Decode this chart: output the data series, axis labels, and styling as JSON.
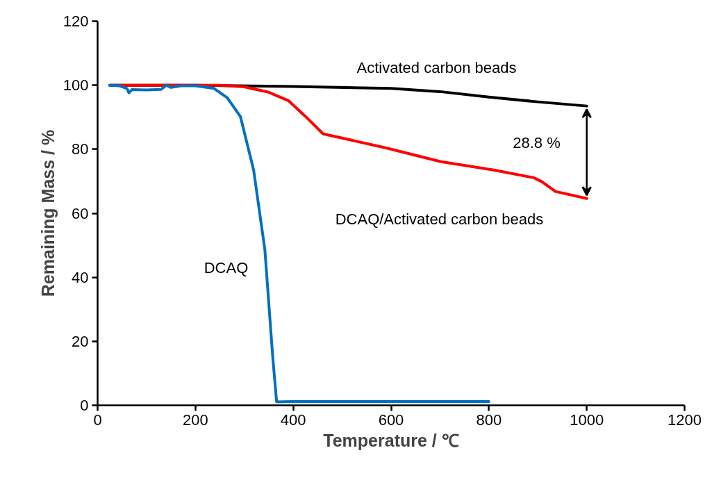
{
  "chart_data": {
    "type": "line",
    "xlabel": "Temperature / ℃",
    "ylabel": "Remaining Mass / %",
    "xlim": [
      0,
      1200
    ],
    "xticks": [
      0,
      200,
      400,
      600,
      800,
      1000,
      1200
    ],
    "ylim": [
      0,
      120
    ],
    "yticks": [
      0,
      20,
      40,
      60,
      80,
      100,
      120
    ],
    "grid": false,
    "legend": false,
    "marker": "none",
    "line_style": "solid",
    "series": [
      {
        "name": "Activated carbon beads",
        "color": "#000000",
        "x": [
          25,
          200,
          400,
          600,
          700,
          800,
          900,
          1000
        ],
        "values": [
          100,
          100,
          99.6,
          99,
          98,
          96.3,
          94.8,
          93.5
        ]
      },
      {
        "name": "DCAQ/Activated carbon beads",
        "color": "#ff0000",
        "x": [
          25,
          200,
          250,
          300,
          350,
          390,
          430,
          461,
          500,
          593,
          702,
          810,
          892,
          909,
          936,
          1000
        ],
        "values": [
          100,
          100,
          100,
          99.5,
          97.8,
          95.2,
          89.5,
          84.8,
          83.5,
          80.3,
          76.1,
          73.5,
          71.1,
          69.8,
          66.8,
          64.6
        ]
      },
      {
        "name": "DCAQ",
        "color": "#0070c0",
        "x": [
          25,
          45,
          60,
          64,
          70,
          100,
          130,
          140,
          150,
          170,
          200,
          238,
          265,
          292,
          319,
          342,
          358,
          366,
          400,
          600,
          800
        ],
        "values": [
          100,
          99.8,
          99,
          97.6,
          98.6,
          98.5,
          98.7,
          100,
          99.3,
          99.8,
          99.8,
          99,
          96.1,
          90.2,
          73.5,
          48.6,
          15.2,
          1.1,
          1.2,
          1.2,
          1.2
        ]
      }
    ],
    "annotations": [
      "28.8 %"
    ]
  }
}
